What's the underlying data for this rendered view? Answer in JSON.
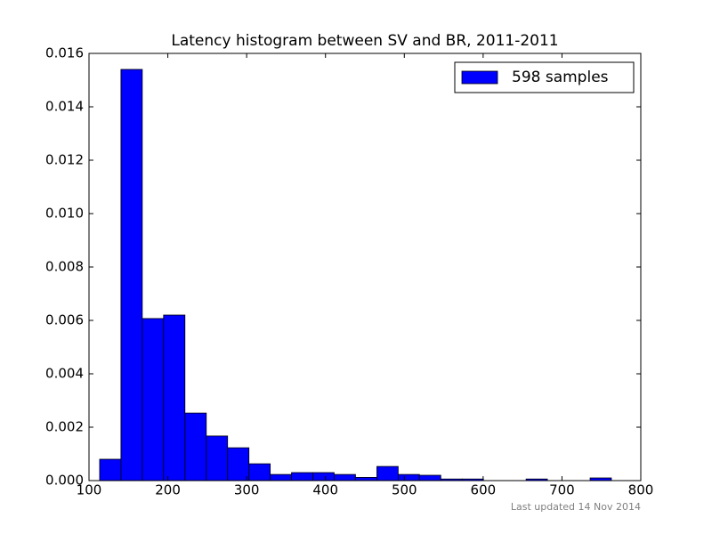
{
  "chart_data": {
    "type": "histogram",
    "title": "Latency histogram between SV and BR, 2011-2011",
    "bins": [
      113.5,
      140.5,
      167.6,
      194.6,
      221.7,
      248.8,
      275.8,
      302.9,
      329.9,
      356.9,
      384.0,
      411.0,
      438.1,
      465.2,
      492.2,
      519.2,
      546.3,
      573.4,
      600.4,
      627.5,
      654.5,
      681.5,
      708.6,
      735.7,
      762.7
    ],
    "series": [
      {
        "name": "598 samples",
        "color": "#0000ff",
        "values": [
          0.0008,
          0.0154,
          0.00607,
          0.0062,
          0.00253,
          0.00167,
          0.00123,
          0.00063,
          0.00023,
          0.0003,
          0.0003,
          0.00023,
          0.00012,
          0.00053,
          0.00023,
          0.0002,
          6e-05,
          6e-05,
          0,
          0,
          6e-05,
          0,
          0,
          0.0001
        ]
      }
    ],
    "xlim": [
      100,
      800
    ],
    "xticks": [
      100,
      200,
      300,
      400,
      500,
      600,
      700,
      800
    ],
    "ylim": [
      0,
      0.016
    ],
    "yticks": [
      {
        "value": 0,
        "label": "0.000"
      },
      {
        "value": 0.002,
        "label": "0.002"
      },
      {
        "value": 0.004,
        "label": "0.004"
      },
      {
        "value": 0.006,
        "label": "0.006"
      },
      {
        "value": 0.008,
        "label": "0.008"
      },
      {
        "value": 0.01,
        "label": "0.010"
      },
      {
        "value": 0.012,
        "label": "0.012"
      },
      {
        "value": 0.014,
        "label": "0.014"
      },
      {
        "value": 0.016,
        "label": "0.016"
      }
    ],
    "legend": "upper right",
    "footnote": "Last updated 14 Nov 2014"
  }
}
